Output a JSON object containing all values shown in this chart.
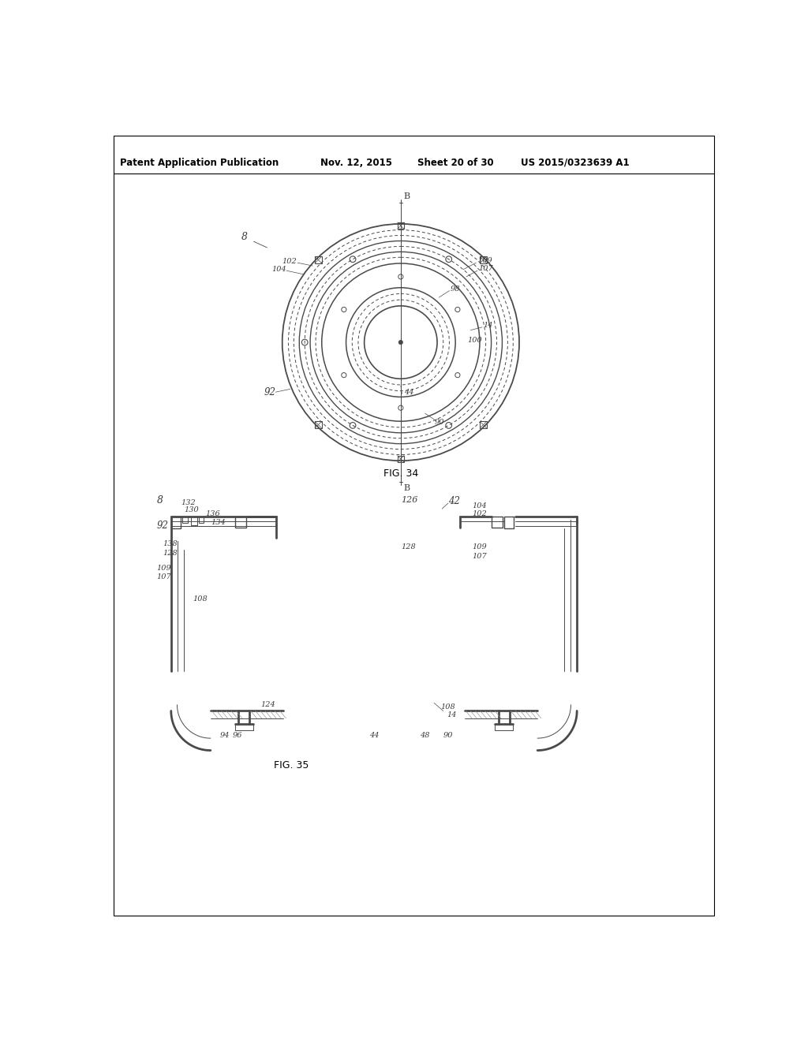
{
  "background_color": "#ffffff",
  "header_text": "Patent Application Publication",
  "header_date": "Nov. 12, 2015",
  "header_sheet": "Sheet 20 of 30",
  "header_patent": "US 2015/0323639 A1",
  "fig34_caption": "FIG. 34",
  "fig35_caption": "FIG. 35",
  "line_color": "#4a4a4a",
  "label_color": "#3a3a3a"
}
